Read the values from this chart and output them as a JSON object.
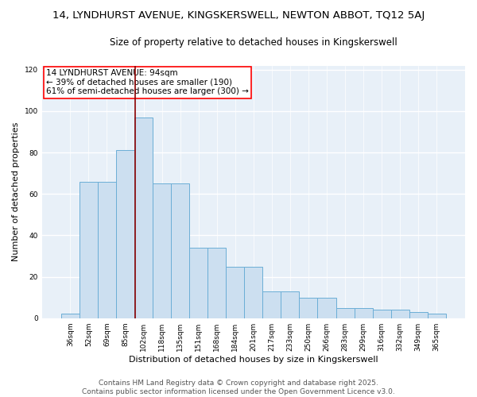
{
  "title_line1": "14, LYNDHURST AVENUE, KINGSKERSWELL, NEWTON ABBOT, TQ12 5AJ",
  "title_line2": "Size of property relative to detached houses in Kingskerswell",
  "xlabel": "Distribution of detached houses by size in Kingskerswell",
  "ylabel": "Number of detached properties",
  "bar_color": "#ccdff0",
  "bar_edge_color": "#6baed6",
  "background_color": "#e8f0f8",
  "grid_color": "#ffffff",
  "categories": [
    "36sqm",
    "52sqm",
    "69sqm",
    "85sqm",
    "102sqm",
    "118sqm",
    "135sqm",
    "151sqm",
    "168sqm",
    "184sqm",
    "201sqm",
    "217sqm",
    "233sqm",
    "250sqm",
    "266sqm",
    "283sqm",
    "299sqm",
    "316sqm",
    "332sqm",
    "349sqm",
    "365sqm"
  ],
  "values": [
    2,
    66,
    66,
    81,
    97,
    65,
    65,
    34,
    34,
    25,
    25,
    13,
    13,
    10,
    10,
    5,
    5,
    4,
    4,
    3,
    2
  ],
  "ylim": [
    0,
    122
  ],
  "yticks": [
    0,
    20,
    40,
    60,
    80,
    100,
    120
  ],
  "red_line_index": 3.53,
  "annotation_text": "14 LYNDHURST AVENUE: 94sqm\n← 39% of detached houses are smaller (190)\n61% of semi-detached houses are larger (300) →",
  "footnote_line1": "Contains HM Land Registry data © Crown copyright and database right 2025.",
  "footnote_line2": "Contains public sector information licensed under the Open Government Licence v3.0.",
  "title_fontsize": 9.5,
  "subtitle_fontsize": 8.5,
  "axis_label_fontsize": 8,
  "tick_fontsize": 6.5,
  "annotation_fontsize": 7.5,
  "footnote_fontsize": 6.5
}
